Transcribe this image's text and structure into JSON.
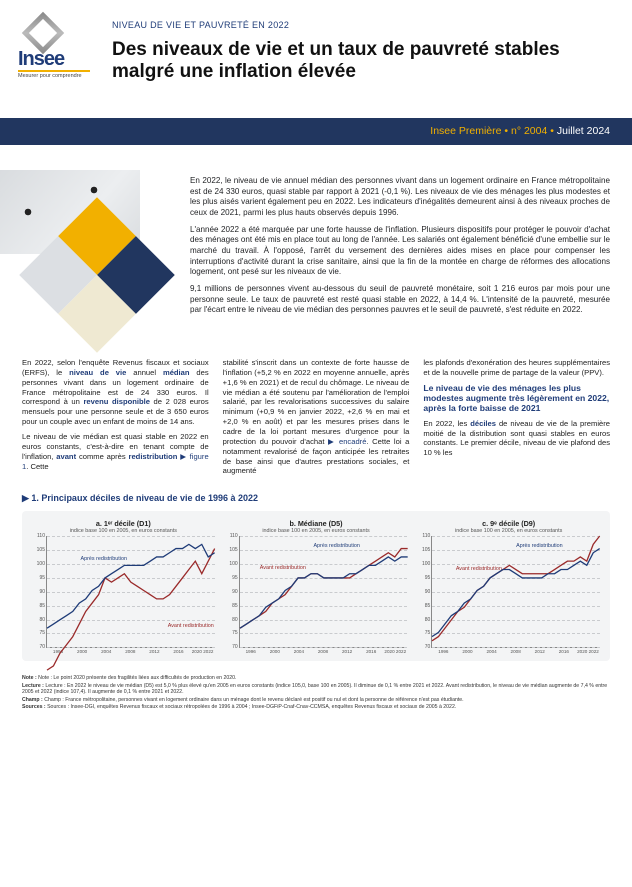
{
  "logo": {
    "word": "Insee",
    "tagline": "Mesurer pour comprendre"
  },
  "eyebrow": "NIVEAU DE VIE ET PAUVRETÉ EN 2022",
  "title": "Des niveaux de vie et un taux de pauvreté stables malgré une inflation élevée",
  "pub": {
    "series": "Insee Première",
    "bullet": "•",
    "issue": "n° 2004",
    "date": "Juillet 2024"
  },
  "lede": {
    "p1": "En 2022, le niveau de vie annuel médian des personnes vivant dans un logement ordinaire en France métropolitaine est de 24 330 euros, quasi stable par rapport à 2021 (-0,1 %). Les niveaux de vie des ménages les plus modestes et les plus aisés varient également peu en 2022. Les indicateurs d'inégalités demeurent ainsi à des niveaux proches de ceux de 2021, parmi les plus hauts observés depuis 1996.",
    "p2": "L'année 2022 a été marquée par une forte hausse de l'inflation. Plusieurs dispositifs pour protéger le pouvoir d'achat des ménages ont été mis en place tout au long de l'année. Les salariés ont également bénéficié d'une embellie sur le marché du travail. À l'opposé, l'arrêt du versement des dernières aides mises en place pour compenser les interruptions d'activité durant la crise sanitaire, ainsi que la fin de la montée en charge de réformes des allocations logement, ont pesé sur les niveaux de vie.",
    "p3": "9,1 millions de personnes vivent au-dessous du seuil de pauvreté monétaire, soit 1 216 euros par mois pour une personne seule. Le taux de pauvreté est resté quasi stable en 2022, à 14,4 %. L'intensité de la pauvreté, mesurée par l'écart entre le niveau de vie médian des personnes pauvres et le seuil de pauvreté, s'est réduite en 2022."
  },
  "col1": {
    "p1a": "En 2022, selon l'enquête Revenus fiscaux et sociaux (ERFS), le ",
    "kw1": "niveau de vie",
    "p1b": " annuel ",
    "kw2": "médian",
    "p1c": " des personnes vivant dans un logement ordinaire de France métropolitaine est de 24 330 euros. Il correspond à un ",
    "kw3": "revenu disponible",
    "p1d": " de 2 028 euros mensuels pour une personne seule et de 3 650 euros pour un couple avec un enfant de moins de 14 ans.",
    "p2a": "Le niveau de vie médian est quasi stable en 2022 en euros constants, c'est-à-dire en tenant compte de l'inflation, ",
    "kw4": "avant",
    "p2b": " comme après ",
    "kw5": "redistribution",
    "ref1": " ▶ figure 1",
    "p2c": ". Cette"
  },
  "col2": {
    "p1a": "stabilité s'inscrit dans un contexte de forte hausse de l'inflation (+5,2 % en 2022 en moyenne annuelle, après +1,6 % en 2021) et de recul du chômage. Le niveau de vie médian a été soutenu par l'amélioration de l'emploi salarié, par les revalorisations successives du salaire minimum (+0,9 % en janvier 2022, +2,6 % en mai et +2,0 % en août) et par les mesures prises dans le cadre de la loi portant mesures d'urgence pour la protection du pouvoir d'achat ",
    "ref1": "▶ encadré",
    "p1b": ". Cette loi a notamment revalorisé de façon anticipée les retraites de base ainsi que d'autres prestations sociales, et augmenté"
  },
  "col3": {
    "p1": "les plafonds d'exonération des heures supplémentaires et de la nouvelle prime de partage de la valeur (PPV).",
    "h": "Le niveau de vie des ménages les plus modestes augmente très légèrement en 2022, après la forte baisse de 2021",
    "p2a": "En 2022, les ",
    "kw1": "déciles",
    "p2b": " de niveau de vie de la première moitié de la distribution sont quasi stables en euros constants. Le premier décile, niveau de vie plafond des 10 % les"
  },
  "figure": {
    "title": "▶ 1. Principaux déciles de niveau de vie de 1996 à 2022",
    "subtitle": "indice base 100 en 2005, en euros constants",
    "lab_avant": "Avant redistribution",
    "lab_apres": "Après redistribution",
    "ylim": [
      70,
      110
    ],
    "yticks": [
      70,
      75,
      80,
      85,
      90,
      95,
      100,
      105,
      110
    ],
    "xlim": [
      1996,
      2022
    ],
    "xticks": [
      "1996",
      "2000",
      "2004",
      "2008",
      "2012",
      "2016",
      "2020 2022"
    ],
    "colors": {
      "avant": "#9a2a2a",
      "apres": "#1f3c78",
      "grid": "#c9cbce",
      "bg": "#f3f4f5"
    },
    "panels": [
      {
        "title": "a. 1ᵉʳ décile (D1)",
        "avant": [
          78,
          79,
          82,
          84,
          86,
          89,
          92,
          94,
          96,
          100,
          99,
          100,
          101,
          99,
          98,
          97,
          96,
          95,
          95,
          96,
          98,
          100,
          102,
          104,
          101,
          104,
          107
        ],
        "apres": [
          88,
          89,
          90,
          91,
          92,
          94,
          95,
          97,
          98,
          100,
          101,
          102,
          103,
          103,
          103,
          103,
          104,
          105,
          105,
          106,
          107,
          107,
          108,
          107,
          108,
          105,
          106
        ],
        "lab_avant_pos": [
          72,
          78
        ],
        "lab_apres_pos": [
          20,
          18
        ]
      },
      {
        "title": "b. Médiane (D5)",
        "avant": [
          88,
          89,
          90,
          91,
          92,
          94,
          95,
          96,
          98,
          100,
          100,
          101,
          101,
          100,
          100,
          100,
          100,
          100,
          101,
          102,
          103,
          104,
          105,
          106,
          105,
          107,
          107
        ],
        "apres": [
          88,
          89,
          90,
          91,
          93,
          94,
          95,
          97,
          98,
          100,
          100,
          101,
          101,
          100,
          100,
          100,
          100,
          101,
          101,
          102,
          103,
          103,
          104,
          105,
          104,
          105,
          105
        ],
        "lab_avant_pos": [
          12,
          26
        ],
        "lab_apres_pos": [
          44,
          6
        ]
      },
      {
        "title": "c. 9ᵉ décile (D9)",
        "avant": [
          85,
          86,
          88,
          90,
          92,
          93,
          95,
          97,
          98,
          100,
          101,
          102,
          103,
          102,
          101,
          101,
          101,
          101,
          101,
          102,
          103,
          104,
          104,
          105,
          104,
          108,
          110
        ],
        "apres": [
          86,
          87,
          89,
          91,
          92,
          94,
          95,
          97,
          98,
          100,
          101,
          102,
          102,
          101,
          100,
          100,
          100,
          100,
          101,
          101,
          102,
          102,
          103,
          104,
          103,
          106,
          107
        ],
        "lab_avant_pos": [
          14,
          27
        ],
        "lab_apres_pos": [
          50,
          6
        ]
      }
    ]
  },
  "notes": {
    "n1": "Note : Le point 2020 présente des fragilités liées aux difficultés de production en 2020.",
    "n2": "Lecture : En 2022 le niveau de vie médian (D5) est 5,0 % plus élevé qu'en 2005 en euros constants (indice 105,0, base 100 en 2005). Il diminue de 0,1 % entre 2021 et 2022. Avant redistribution, le niveau de vie médian augmente de 7,4 % entre 2005 et 2022 (indice 107,4). Il augmente de 0,1 % entre 2021 et 2022.",
    "n3": "Champ : France métropolitaine, personnes vivant en logement ordinaire dans un ménage dont le revenu déclaré est positif ou nul et dont la personne de référence n'est pas étudiante.",
    "n4": "Sources : Insee-DGI, enquêtes Revenus fiscaux et sociaux rétropolées de 1996 à 2004 ; Insee-DGFiP-Cnaf-Cnav-CCMSA, enquêtes Revenus fiscaux et sociaux de 2005 à 2022."
  }
}
